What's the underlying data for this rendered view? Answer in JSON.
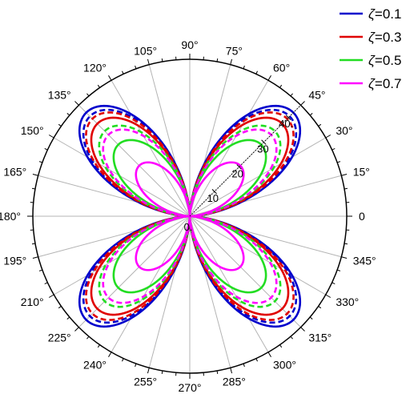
{
  "chart_data": {
    "type": "polar-line",
    "angle_unit": "degree",
    "angle_ticks": [
      0,
      15,
      30,
      45,
      60,
      75,
      90,
      105,
      120,
      135,
      150,
      165,
      180,
      195,
      210,
      225,
      240,
      255,
      270,
      285,
      300,
      315,
      330,
      345
    ],
    "angle_labels": [
      "0",
      "15°",
      "30°",
      "45°",
      "60°",
      "75°",
      "90°",
      "105°",
      "120°",
      "135°",
      "150°",
      "165°",
      "180°",
      "195°",
      "210°",
      "225°",
      "240°",
      "255°",
      "270°",
      "285°",
      "300°",
      "315°",
      "330°",
      "345°"
    ],
    "radial_range": [
      0,
      45
    ],
    "radial_ticks": [
      0,
      10,
      20,
      30,
      40
    ],
    "radial_labels": [
      "0.",
      "10",
      "20",
      "30",
      "40."
    ],
    "radial_axis_angle": 45,
    "grid": true,
    "legend_position": "top-right",
    "curve_model": "r = peak * |sin(2θ)|^1.5",
    "series": [
      {
        "name": "ζ=0.1",
        "symbol": "ζ",
        "value_text": "=0.1",
        "color": "#0000cc",
        "style": "solid",
        "peak": 42
      },
      {
        "name": "ζ=0.1 (dashed)",
        "color": "#0000cc",
        "style": "dashed",
        "peak": 40.5,
        "in_legend": false
      },
      {
        "name": "ζ=0.3",
        "symbol": "ζ",
        "value_text": "=0.3",
        "color": "#e00000",
        "style": "solid",
        "peak": 37.5
      },
      {
        "name": "ζ=0.3 (dashed)",
        "color": "#e00000",
        "style": "dashed",
        "peak": 39.5,
        "in_legend": false
      },
      {
        "name": "ζ=0.5",
        "symbol": "ζ",
        "value_text": "=0.5",
        "color": "#22dd22",
        "style": "solid",
        "peak": 29
      },
      {
        "name": "ζ=0.5 (dashed)",
        "color": "#22dd22",
        "style": "dashed",
        "peak": 34.5,
        "in_legend": false
      },
      {
        "name": "ζ=0.7",
        "symbol": "ζ",
        "value_text": "=0.7",
        "color": "#ff00ff",
        "style": "solid",
        "peak": 20.5
      },
      {
        "name": "ζ=0.7 (dashed)",
        "color": "#ff00ff",
        "style": "dashed",
        "peak": 33,
        "in_legend": false
      }
    ]
  }
}
